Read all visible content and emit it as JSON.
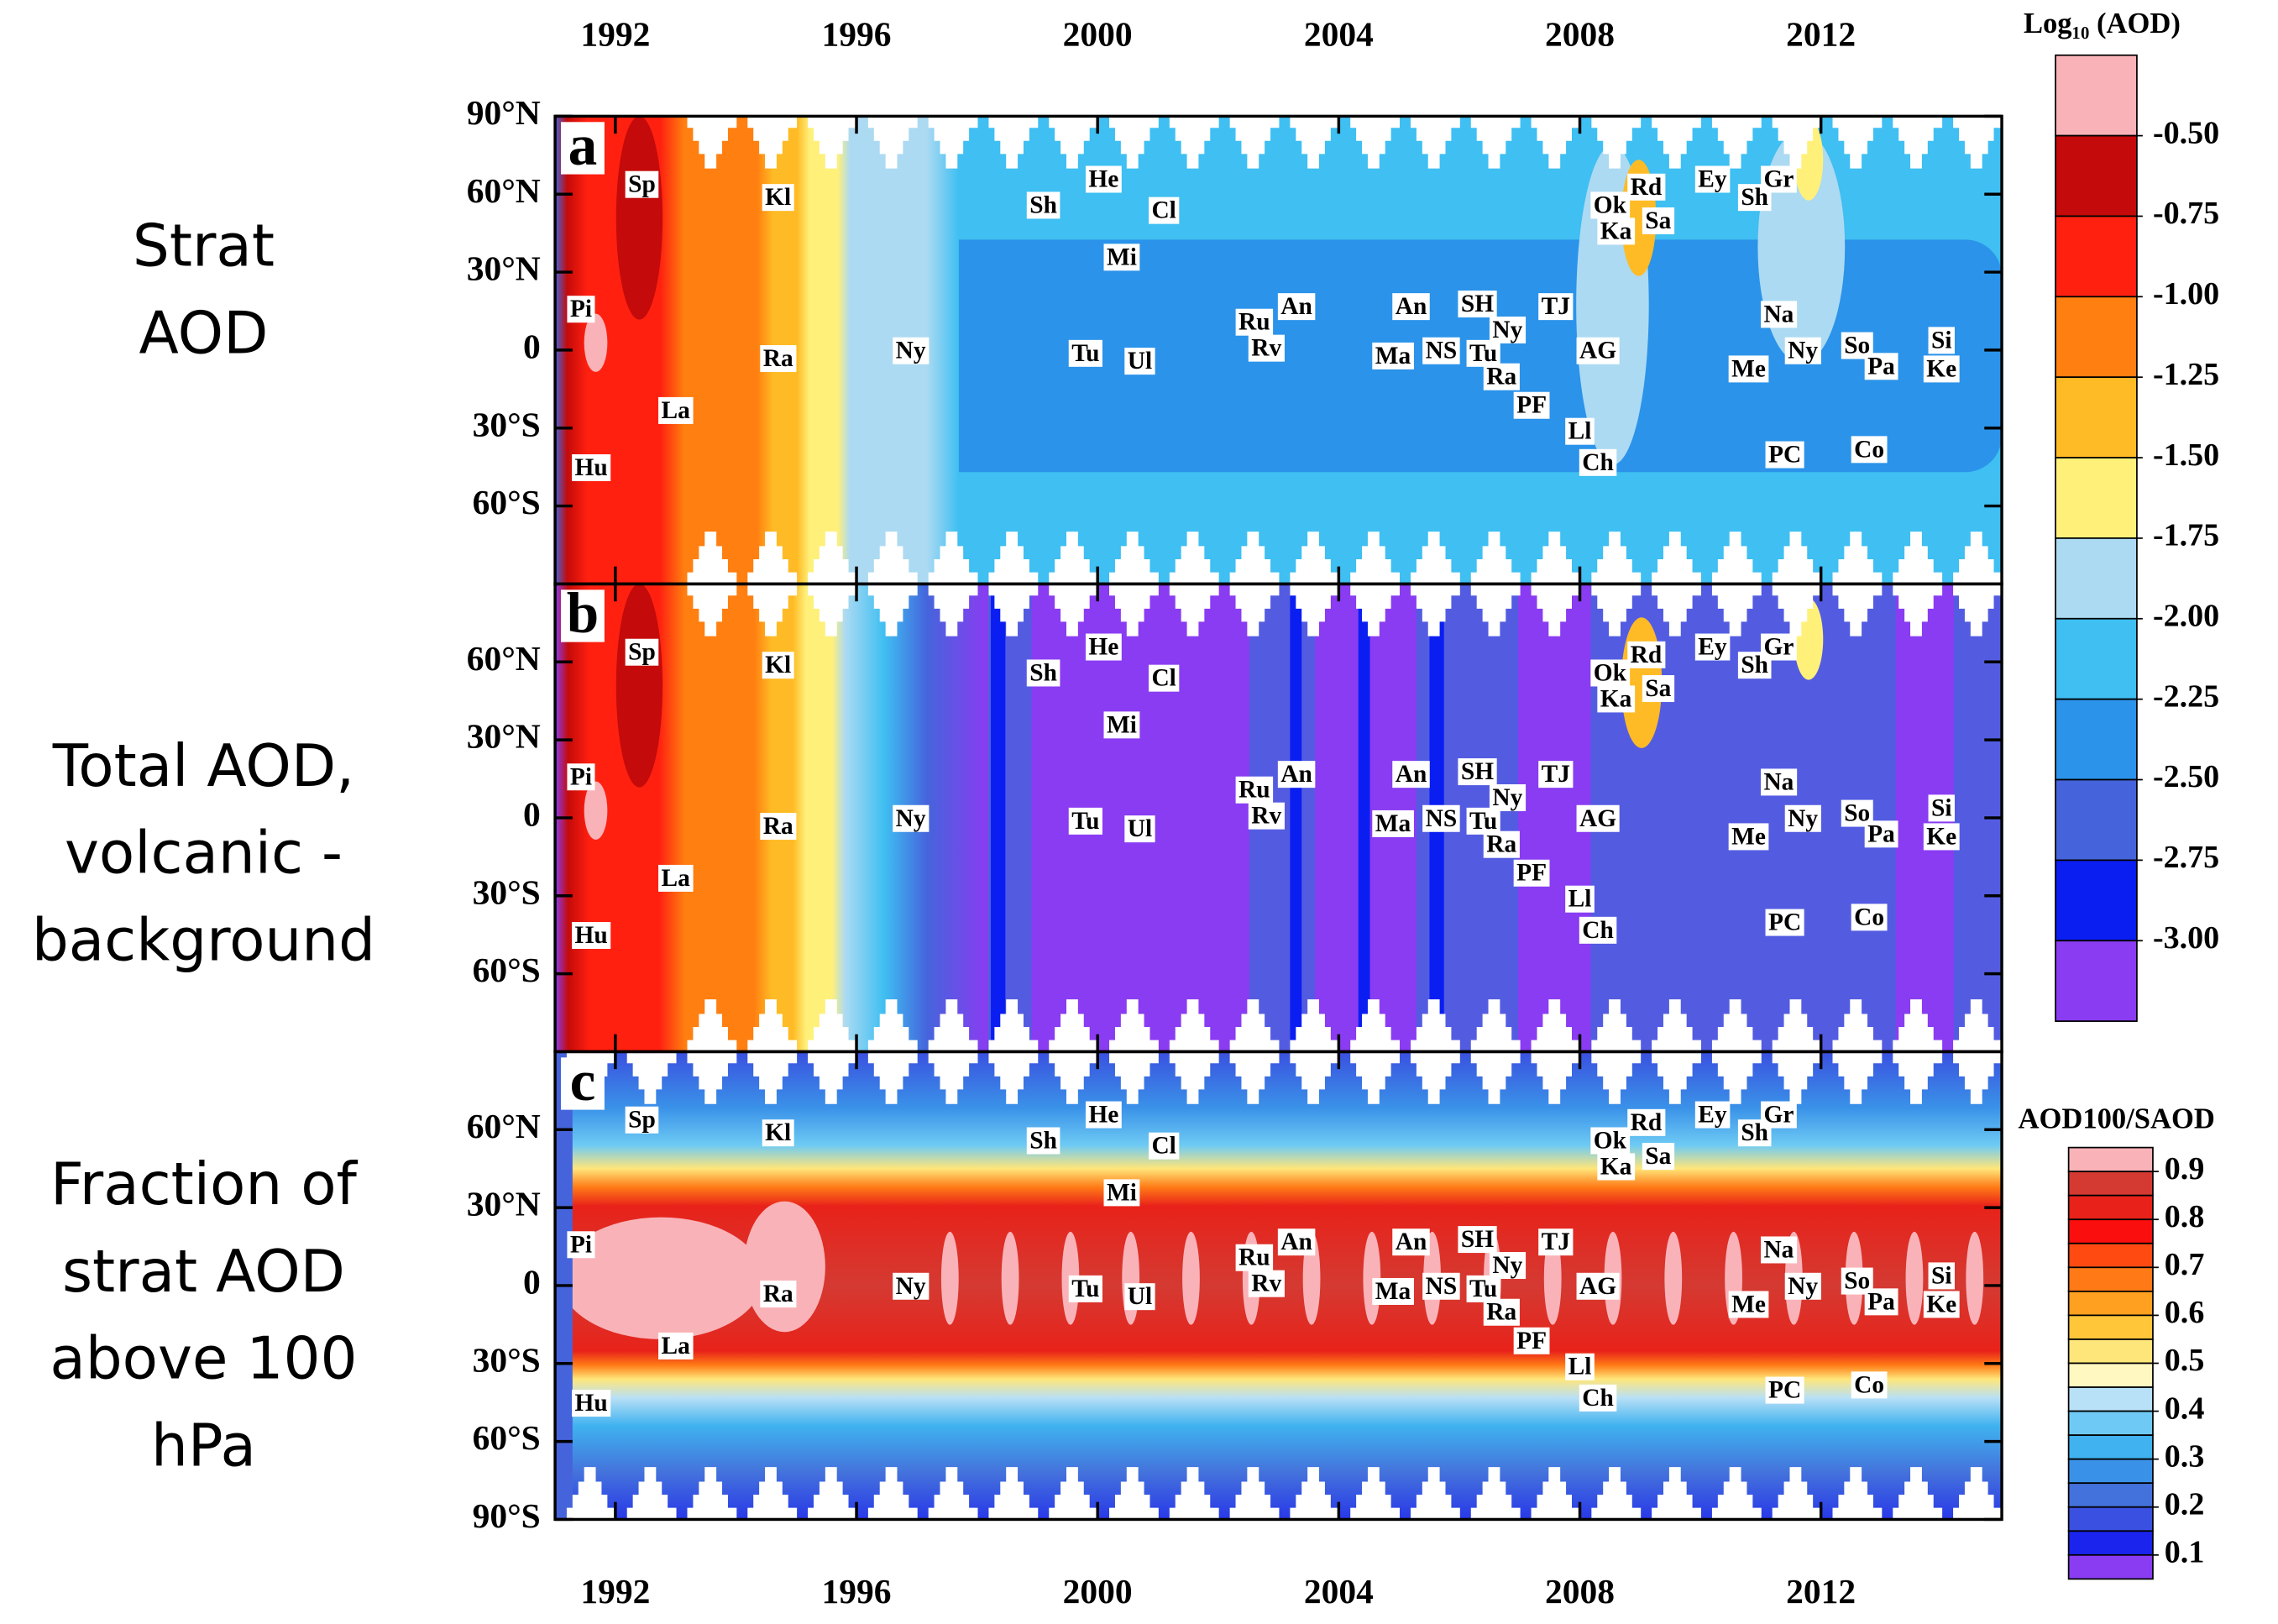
{
  "chart_data": [
    {
      "type": "contour",
      "panel_label": "a",
      "row_label": [
        "Strat",
        "AOD"
      ],
      "xlim": [
        1991,
        2015
      ],
      "xticks": [
        1992,
        1996,
        2000,
        2004,
        2008,
        2012
      ],
      "xtick_labels": "top",
      "ylim": [
        -90,
        90
      ],
      "yticks": [
        {
          "value": -60,
          "label": "60°S"
        },
        {
          "value": -30,
          "label": "30°S"
        },
        0,
        {
          "value": 30,
          "label": "30°N"
        },
        {
          "value": 60,
          "label": "60°N"
        },
        {
          "value": 90,
          "label": "90°N"
        }
      ],
      "colorbar": {
        "title": "Log₁₀ (AOD)",
        "clim": [
          -0.25,
          -3.25
        ],
        "levels": [
          {
            "value": -0.5,
            "label": "-0.50"
          },
          {
            "value": -0.75,
            "label": "-0.75"
          },
          {
            "value": -1.0,
            "label": "-1.00"
          },
          {
            "value": -1.25,
            "label": "-1.25"
          },
          {
            "value": -1.5,
            "label": "-1.50"
          },
          {
            "value": -1.75,
            "label": "-1.75"
          },
          {
            "value": -2.0,
            "label": "-2.00"
          },
          {
            "value": -2.25,
            "label": "-2.25"
          },
          {
            "value": -2.5,
            "label": "-2.50"
          },
          {
            "value": -2.75,
            "label": "-2.75"
          },
          {
            "value": -3.0,
            "label": "-3.00"
          }
        ],
        "colors": [
          "#f9b3b8",
          "#c40a0a",
          "#ff2010",
          "#ff7f10",
          "#ffbb25",
          "#fff07a",
          "#acdaf2",
          "#3fbff2",
          "#2b93ea",
          "#4564dc",
          "#0a1ef2",
          "#8a3cf2"
        ]
      }
    },
    {
      "type": "contour",
      "panel_label": "b",
      "row_label": [
        "Total AOD,",
        "volcanic -",
        "background"
      ],
      "xlim": [
        1991,
        2015
      ],
      "xticks": [
        1992,
        1996,
        2000,
        2004,
        2008,
        2012
      ],
      "xtick_labels": "none",
      "ylim": [
        -90,
        90
      ],
      "yticks": [
        {
          "value": -60,
          "label": "60°S"
        },
        {
          "value": -30,
          "label": "30°S"
        },
        0,
        {
          "value": 30,
          "label": "30°N"
        },
        {
          "value": 60,
          "label": "60°N"
        }
      ]
    },
    {
      "type": "contour",
      "panel_label": "c",
      "row_label": [
        "Fraction of",
        "strat AOD",
        "above 100",
        "hPa"
      ],
      "xlim": [
        1991,
        2015
      ],
      "xticks": [
        1992,
        1996,
        2000,
        2004,
        2008,
        2012
      ],
      "xtick_labels": "bottom",
      "ylim": [
        -90,
        90
      ],
      "yticks": [
        {
          "value": -90,
          "label": "90°S"
        },
        {
          "value": -60,
          "label": "60°S"
        },
        {
          "value": -30,
          "label": "30°S"
        },
        0,
        {
          "value": 30,
          "label": "30°N"
        },
        {
          "value": 60,
          "label": "60°N"
        }
      ],
      "colorbar": {
        "title": "AOD100/SAOD",
        "clim": [
          0.95,
          0.05
        ],
        "levels": [
          0.9,
          0.8,
          0.7,
          0.6,
          0.5,
          0.4,
          0.3,
          0.2,
          0.1
        ],
        "colors": [
          "#f9b3b8",
          "#d43a32",
          "#e8221a",
          "#fb0e0e",
          "#ff4a12",
          "#ff7a16",
          "#ffa020",
          "#ffc63a",
          "#ffe67a",
          "#fff8c0",
          "#b8e0f6",
          "#6ecaf4",
          "#3fb2ef",
          "#3a92e8",
          "#4472dc",
          "#3a50e0",
          "#1a24ec",
          "#8a3cf2"
        ]
      }
    }
  ],
  "volcano_labels": [
    {
      "text": "Sp",
      "x": 1992.44,
      "y": 63
    },
    {
      "text": "Pi",
      "x": 1991.43,
      "y": 15
    },
    {
      "text": "La",
      "x": 1993.0,
      "y": -24
    },
    {
      "text": "Hu",
      "x": 1991.6,
      "y": -46
    },
    {
      "text": "Kl",
      "x": 1994.7,
      "y": 58
    },
    {
      "text": "Ra",
      "x": 1994.7,
      "y": -4
    },
    {
      "text": "Ny",
      "x": 1996.9,
      "y": -1
    },
    {
      "text": "Sh",
      "x": 1999.1,
      "y": 55
    },
    {
      "text": "He",
      "x": 2000.1,
      "y": 65
    },
    {
      "text": "Cl",
      "x": 2001.1,
      "y": 53
    },
    {
      "text": "Mi",
      "x": 2000.4,
      "y": 35
    },
    {
      "text": "Tu",
      "x": 1999.8,
      "y": -2
    },
    {
      "text": "Ul",
      "x": 2000.7,
      "y": -5
    },
    {
      "text": "Ru",
      "x": 2002.6,
      "y": 10
    },
    {
      "text": "An",
      "x": 2003.3,
      "y": 16
    },
    {
      "text": "Rv",
      "x": 2002.8,
      "y": 0
    },
    {
      "text": "An",
      "x": 2005.2,
      "y": 16
    },
    {
      "text": "Ma",
      "x": 2004.9,
      "y": -3
    },
    {
      "text": "NS",
      "x": 2005.7,
      "y": -1
    },
    {
      "text": "SH",
      "x": 2006.3,
      "y": 17
    },
    {
      "text": "Ny",
      "x": 2006.8,
      "y": 7
    },
    {
      "text": "Tu",
      "x": 2006.4,
      "y": -2
    },
    {
      "text": "Ra",
      "x": 2006.7,
      "y": -11
    },
    {
      "text": "PF",
      "x": 2007.2,
      "y": -22
    },
    {
      "text": "TJ",
      "x": 2007.6,
      "y": 16
    },
    {
      "text": "AG",
      "x": 2008.3,
      "y": -1
    },
    {
      "text": "Ll",
      "x": 2008.0,
      "y": -32
    },
    {
      "text": "Ch",
      "x": 2008.3,
      "y": -44
    },
    {
      "text": "Ok",
      "x": 2008.5,
      "y": 55
    },
    {
      "text": "Ka",
      "x": 2008.6,
      "y": 45
    },
    {
      "text": "Rd",
      "x": 2009.1,
      "y": 62
    },
    {
      "text": "Sa",
      "x": 2009.3,
      "y": 49
    },
    {
      "text": "Ey",
      "x": 2010.2,
      "y": 65
    },
    {
      "text": "Sh",
      "x": 2010.9,
      "y": 58
    },
    {
      "text": "Gr",
      "x": 2011.3,
      "y": 65
    },
    {
      "text": "Na",
      "x": 2011.3,
      "y": 13
    },
    {
      "text": "Ny",
      "x": 2011.7,
      "y": -1
    },
    {
      "text": "Me",
      "x": 2010.8,
      "y": -8
    },
    {
      "text": "PC",
      "x": 2011.4,
      "y": -41
    },
    {
      "text": "So",
      "x": 2012.6,
      "y": 1
    },
    {
      "text": "Pa",
      "x": 2013.0,
      "y": -7
    },
    {
      "text": "Co",
      "x": 2012.8,
      "y": -39
    },
    {
      "text": "Si",
      "x": 2014.0,
      "y": 3
    },
    {
      "text": "Ke",
      "x": 2014.0,
      "y": -8
    }
  ]
}
